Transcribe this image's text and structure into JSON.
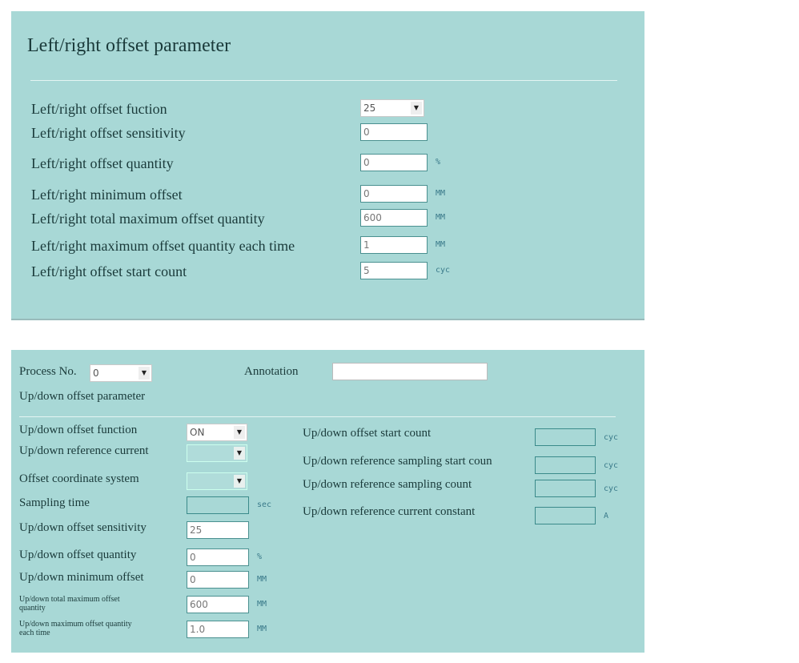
{
  "panel1": {
    "title": "Left/right offset parameter",
    "rows": [
      {
        "label": "Left/right offset fuction",
        "value": "25",
        "type": "select",
        "unit": ""
      },
      {
        "label": "Left/right offset sensitivity",
        "value": "0",
        "type": "input",
        "unit": ""
      },
      {
        "label": "Left/right offset quantity",
        "value": "0",
        "type": "input",
        "unit": "%"
      },
      {
        "label": "Left/right minimum offset",
        "value": "0",
        "type": "input",
        "unit": "MM"
      },
      {
        "label": "Left/right total maximum offset quantity",
        "value": "600",
        "type": "input",
        "unit": "MM"
      },
      {
        "label": "Left/right maximum offset quantity each time",
        "value": "1",
        "type": "input",
        "unit": "MM"
      },
      {
        "label": "Left/right offset start count",
        "value": "5",
        "type": "input",
        "unit": "cyc"
      }
    ]
  },
  "panel2": {
    "process_label": "Process No.",
    "process_value": "0",
    "annotation_label": "Annotation",
    "annotation_value": "",
    "section_title": "Up/down offset parameter",
    "left": [
      {
        "label": "Up/down offset function",
        "value": "ON",
        "type": "select",
        "unit": ""
      },
      {
        "label": "Up/down reference current",
        "value": "",
        "type": "select-disabled",
        "unit": ""
      },
      {
        "label": "Offset coordinate system",
        "value": "",
        "type": "select-disabled",
        "unit": ""
      },
      {
        "label": "Sampling time",
        "value": "",
        "type": "empty",
        "unit": "sec"
      },
      {
        "label": "Up/down offset sensitivity",
        "value": "25",
        "type": "input",
        "unit": ""
      },
      {
        "label": "Up/down offset quantity",
        "value": "0",
        "type": "input",
        "unit": "%"
      },
      {
        "label": "Up/down minimum offset",
        "value": "0",
        "type": "input",
        "unit": "MM"
      },
      {
        "label": "Up/down total maximum offset quantity",
        "value": "600",
        "type": "input",
        "unit": "MM"
      },
      {
        "label": "Up/down maximum offset quantity each time",
        "value": "1.0",
        "type": "input",
        "unit": "MM"
      }
    ],
    "right": [
      {
        "label": "Up/down offset start count",
        "value": "",
        "unit": "cyc"
      },
      {
        "label": "Up/down reference sampling start coun",
        "value": "",
        "unit": "cyc"
      },
      {
        "label": "Up/down reference sampling count",
        "value": "",
        "unit": "cyc"
      },
      {
        "label": "Up/down reference current constant",
        "value": "",
        "unit": "A"
      }
    ]
  },
  "colors": {
    "panel_bg": "#a8d8d6",
    "border": "#4a9090"
  }
}
